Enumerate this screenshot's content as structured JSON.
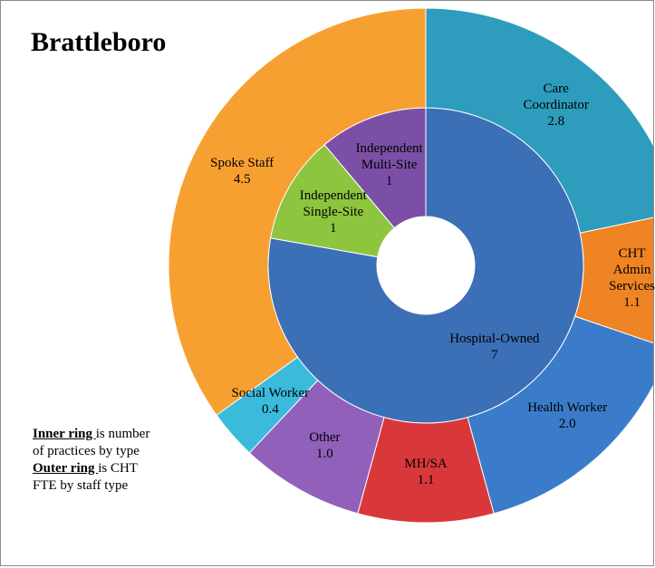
{
  "chart_data": {
    "type": "donut",
    "title": "Brattleboro",
    "series": [
      {
        "categories": [
          "Hospital-Owned",
          "Independent Single-Site",
          "Independent Multi-Site"
        ],
        "values": [
          7,
          1,
          1
        ],
        "colors": [
          "#3b6fb6",
          "#8dc53f",
          "#7c4fa6"
        ]
      },
      {
        "categories": [
          "Care Coordinator",
          "CHT Admin Services",
          "Health Worker",
          "MH/SA",
          "Other",
          "Social Worker",
          "Spoke Staff"
        ],
        "values": [
          2.8,
          1.1,
          2.0,
          1.1,
          1.0,
          0.4,
          4.5
        ],
        "value_labels": [
          "2.8",
          "1.1",
          "2.0",
          "1.1",
          "1.0",
          "0.4",
          "4.5"
        ],
        "colors": [
          "#2e9cbc",
          "#ee8424",
          "#3a7cca",
          "#d9383a",
          "#9160ba",
          "#3bbbdb",
          "#f7a032"
        ]
      }
    ],
    "notes": [
      {
        "bold": "Inner ring ",
        "text": "is number of practices by type"
      },
      {
        "bold": "Outer ring ",
        "text": "is CHT FTE by staff type"
      }
    ]
  }
}
